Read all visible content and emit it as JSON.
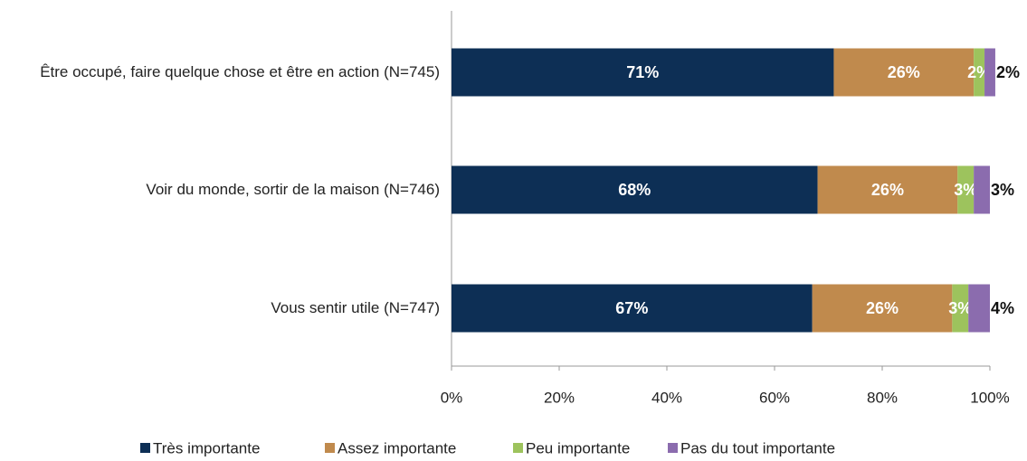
{
  "chart_data": {
    "type": "stacked_bar_horizontal",
    "categories": [
      "Être occupé, faire quelque chose et être en action (N=745)",
      "Voir du monde, sortir de la maison (N=746)",
      "Vous sentir utile (N=747)"
    ],
    "series": [
      {
        "name": "Très importante",
        "color": "#0d2f55",
        "values": [
          71,
          68,
          67
        ],
        "value_labels": [
          "71%",
          "68%",
          "67%"
        ]
      },
      {
        "name": "Assez importante",
        "color": "#c08a4d",
        "values": [
          26,
          26,
          26
        ],
        "value_labels": [
          "26%",
          "26%",
          "26%"
        ]
      },
      {
        "name": "Peu importante",
        "color": "#9dc35d",
        "values": [
          2,
          3,
          3
        ],
        "value_labels": [
          "2%",
          "3%",
          "3%"
        ]
      },
      {
        "name": "Pas du tout importante",
        "color": "#8b6cae",
        "values": [
          2,
          3,
          4
        ],
        "value_labels": [
          "2%",
          "3%",
          "4%"
        ]
      }
    ],
    "xlim": [
      0,
      100
    ],
    "xticks": [
      {
        "value": 0,
        "label": "0%"
      },
      {
        "value": 20,
        "label": "20%"
      },
      {
        "value": 40,
        "label": "40%"
      },
      {
        "value": 60,
        "label": "60%"
      },
      {
        "value": 80,
        "label": "80%"
      },
      {
        "value": 100,
        "label": "100%"
      }
    ],
    "legend": "bottom"
  }
}
